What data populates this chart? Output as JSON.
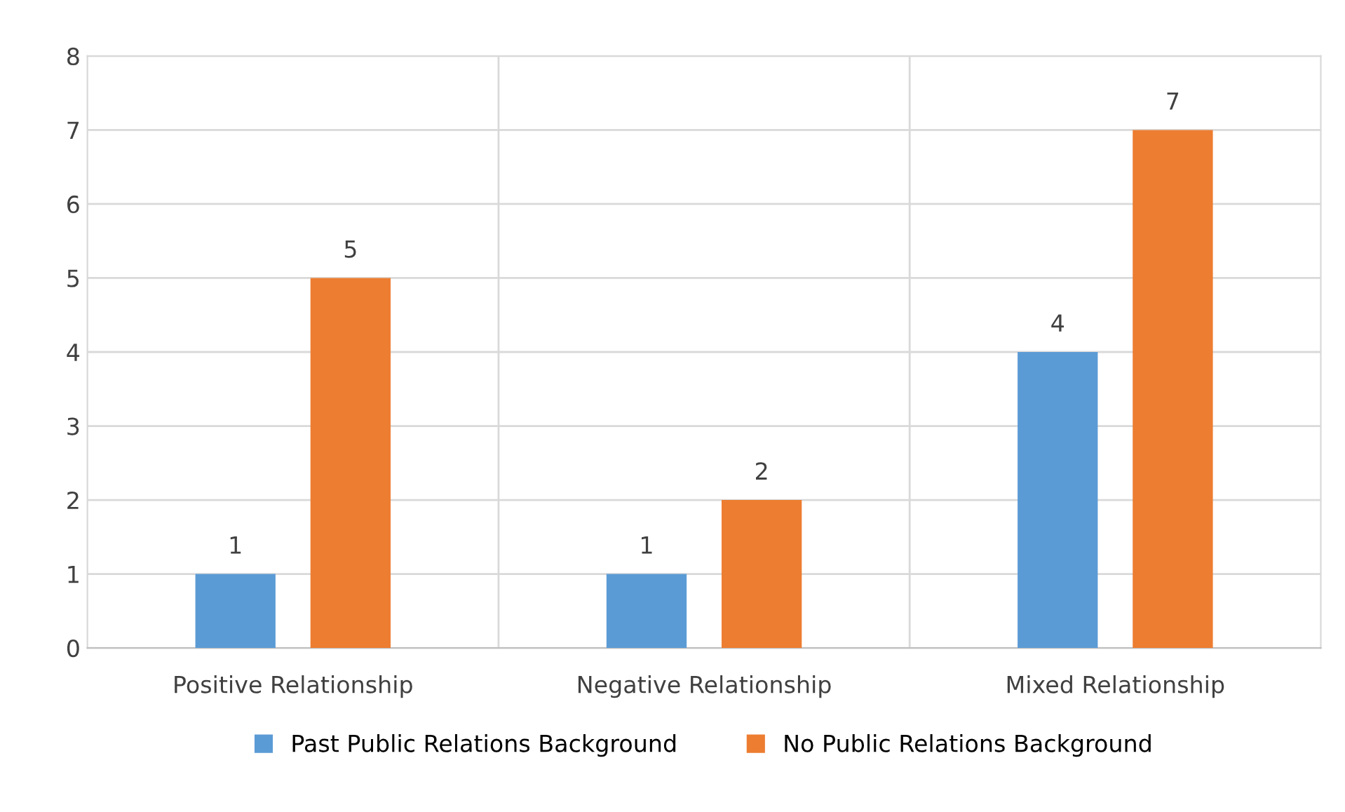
{
  "chart_data": {
    "type": "bar",
    "categories": [
      "Positive Relationship",
      "Negative Relationship",
      "Mixed Relationship"
    ],
    "series": [
      {
        "name": "Past Public Relations Background",
        "color": "#5b9bd5",
        "values": [
          1,
          1,
          4
        ]
      },
      {
        "name": "No Public Relations Background",
        "color": "#ed7d31",
        "values": [
          5,
          2,
          7
        ]
      }
    ],
    "ylim": [
      0,
      8
    ],
    "yticks": [
      0,
      1,
      2,
      3,
      4,
      5,
      6,
      7,
      8
    ],
    "grid": true,
    "legend": "bottom",
    "data_labels": true
  }
}
